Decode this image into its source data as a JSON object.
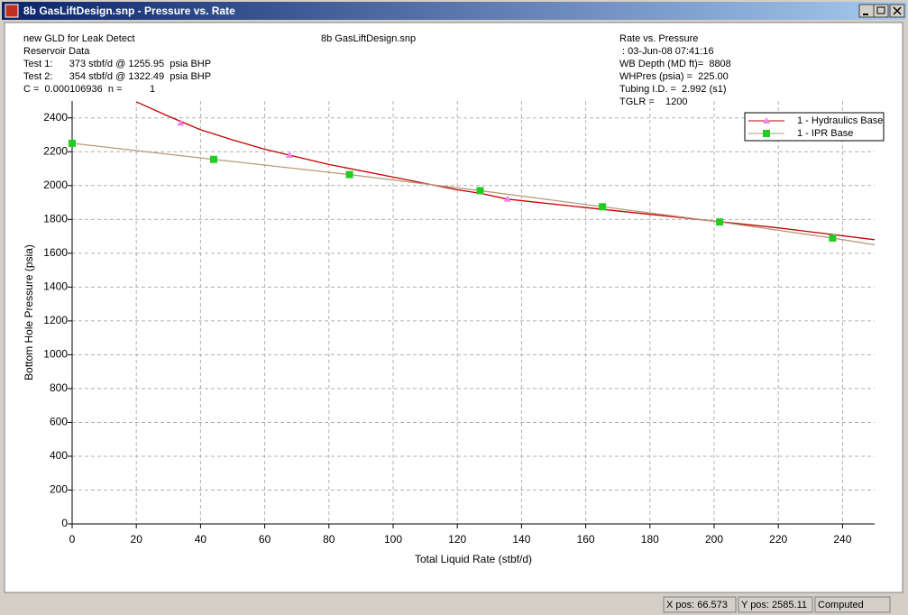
{
  "window": {
    "title": "8b GasLiftDesign.snp - Pressure vs. Rate"
  },
  "header": {
    "left": [
      "new GLD for Leak Detect",
      "Reservoir Data",
      "Test 1:      373 stbf/d @ 1255.95  psia BHP",
      "Test 2:      354 stbf/d @ 1322.49  psia BHP",
      "C =  0.000106936  n =          1"
    ],
    "center": "8b GasLiftDesign.snp",
    "right": [
      "Rate vs. Pressure",
      " : 03-Jun-08 07:41:16",
      "WB Depth (MD ft)=  8808",
      "WHPres (psia) =  225.00",
      "Tubing I.D. =  2.992 (s1)",
      "TGLR =    1200"
    ]
  },
  "chart_data": {
    "type": "line",
    "x_label": "Total Liquid Rate (stbf/d)",
    "y_label": "Bottom Hole Pressure (psia)",
    "xlim": [
      0,
      250
    ],
    "xticks": [
      0,
      20,
      40,
      60,
      80,
      100,
      120,
      140,
      160,
      180,
      200,
      220,
      240
    ],
    "ylim": [
      0,
      2500
    ],
    "yticks": [
      0,
      200,
      400,
      600,
      800,
      1000,
      1200,
      1400,
      1600,
      1800,
      2000,
      2200,
      2400
    ],
    "grid": true,
    "legend": "top-right",
    "series": [
      {
        "name": "1 - Hydraulics Base",
        "color": "#c00000",
        "marker": "triangle",
        "marker_color": "#ee82ee",
        "x": [
          20,
          30,
          40,
          50,
          60,
          67.7,
          80,
          100,
          120,
          127,
          135.6,
          160,
          180,
          200,
          220,
          250
        ],
        "values": [
          2495,
          2410,
          2330,
          2270,
          2215,
          2180,
          2125,
          2050,
          1975,
          1955,
          1920,
          1870,
          1830,
          1790,
          1750,
          1680
        ],
        "markers": {
          "x": [
            33.8,
            67.7,
            135.6
          ],
          "values": [
            2370,
            2180,
            1920
          ]
        }
      },
      {
        "name": "1 - IPR Base",
        "color": "#b89a78",
        "marker": "square",
        "marker_color": "#22cc22",
        "x": [
          0,
          44.1,
          86.4,
          127.1,
          165.2,
          201.7,
          236.9,
          250
        ],
        "values": [
          2250,
          2155,
          2065,
          1970,
          1875,
          1785,
          1690,
          1650
        ],
        "markers": {
          "x": [
            0,
            44.1,
            86.4,
            127.1,
            165.2,
            201.7,
            236.9
          ],
          "values": [
            2250,
            2155,
            2065,
            1970,
            1875,
            1785,
            1690
          ]
        }
      }
    ]
  },
  "status_bar": [
    "X pos: 66.573",
    "Y pos: 2585.11",
    "Computed"
  ]
}
